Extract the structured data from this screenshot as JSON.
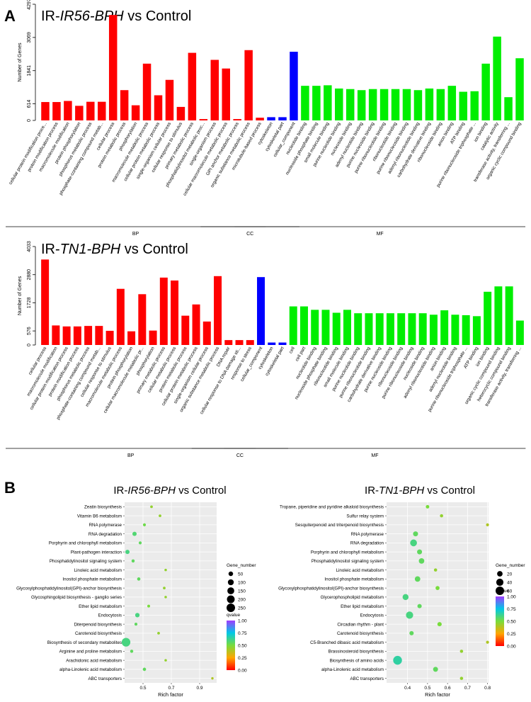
{
  "panelA": {
    "letter": "A",
    "colors": {
      "BP": "#ff0000",
      "CC": "#0000ff",
      "MF": "#00ee00"
    },
    "charts": [
      {
        "title_prefix": "IR-",
        "title_italic": "IR56-BPH",
        "title_suffix": " vs Control",
        "ylabel": "Number of Genes",
        "ymax": 4297,
        "yticks": [
          0,
          614,
          1841,
          3069,
          4297
        ],
        "groups": [
          {
            "name": "BP",
            "items": [
              {
                "label": "cellular protein modification proce...",
                "value": 680
              },
              {
                "label": "protein modification process",
                "value": 680
              },
              {
                "label": "macromolecule modification",
                "value": 720
              },
              {
                "label": "protein phosphorylation",
                "value": 540
              },
              {
                "label": "phosphorus metabolic process",
                "value": 690
              },
              {
                "label": "phosphate-containing compound metab...",
                "value": 690
              },
              {
                "label": "cellular process",
                "value": 3900
              },
              {
                "label": "protein metabolic process",
                "value": 1120
              },
              {
                "label": "phosphorylation",
                "value": 560
              },
              {
                "label": "macromolecule metabolic process",
                "value": 2100
              },
              {
                "label": "cellular protein metabolic process",
                "value": 930
              },
              {
                "label": "single-organism cellular process",
                "value": 1500
              },
              {
                "label": "cellular response to stimulus",
                "value": 500
              },
              {
                "label": "primary metabolic process",
                "value": 2500
              },
              {
                "label": "phosphatidylinositol metabolic proc...",
                "value": 50
              },
              {
                "label": "single-organism process",
                "value": 2240
              },
              {
                "label": "cellular macromolecule metabolic process",
                "value": 1920
              },
              {
                "label": "GPI anchor metabolic process",
                "value": 50
              },
              {
                "label": "organic substance metabolic process",
                "value": 2600
              },
              {
                "label": "microtubule-based process",
                "value": 100
              }
            ]
          },
          {
            "name": "CC",
            "items": [
              {
                "label": "cytoskeleton",
                "value": 120
              },
              {
                "label": "cytoskeletal part",
                "value": 120
              },
              {
                "label": "cellular_component",
                "value": 2540
              }
            ]
          },
          {
            "name": "MF",
            "items": [
              {
                "label": "nucleotide binding",
                "value": 1280
              },
              {
                "label": "nucleoside phosphate binding",
                "value": 1280
              },
              {
                "label": "small molecule binding",
                "value": 1300
              },
              {
                "label": "purine nucleotide binding",
                "value": 1180
              },
              {
                "label": "nucleoside binding",
                "value": 1160
              },
              {
                "label": "adenyl nucleotide binding",
                "value": 1120
              },
              {
                "label": "purine nucleoside binding",
                "value": 1160
              },
              {
                "label": "purine ribonucleotide binding",
                "value": 1160
              },
              {
                "label": "ribonucleotide binding",
                "value": 1160
              },
              {
                "label": "purine ribonucleoside binding",
                "value": 1160
              },
              {
                "label": "adenyl ribonucleotide binding",
                "value": 1120
              },
              {
                "label": "carbohydrate derivative binding",
                "value": 1180
              },
              {
                "label": "ribonucleoside binding",
                "value": 1160
              },
              {
                "label": "anion binding",
                "value": 1280
              },
              {
                "label": "ATP binding",
                "value": 1060
              },
              {
                "label": "purine ribonucleoside triphosphate ...",
                "value": 1080
              },
              {
                "label": "ion binding",
                "value": 2100
              },
              {
                "label": "catalytic activity",
                "value": 3100
              },
              {
                "label": "transferase activity, transferring ...",
                "value": 860
              },
              {
                "label": "organic cyclic compound binding",
                "value": 2300
              }
            ]
          }
        ]
      },
      {
        "title_prefix": "IR-",
        "title_italic": "TN1-BPH",
        "title_suffix": " vs Control",
        "ylabel": "Number of Genes",
        "ymax": 4033,
        "yticks": [
          0,
          576,
          1728,
          2880,
          4033
        ],
        "groups": [
          {
            "name": "BP",
            "items": [
              {
                "label": "cellular process",
                "value": 3500
              },
              {
                "label": "macromolecule modification",
                "value": 800
              },
              {
                "label": "cellular protein modification process",
                "value": 760
              },
              {
                "label": "protein modification process",
                "value": 760
              },
              {
                "label": "phosphorus metabolic process",
                "value": 780
              },
              {
                "label": "phosphate-containing compound metab...",
                "value": 780
              },
              {
                "label": "cellular response to stimulus",
                "value": 580
              },
              {
                "label": "macromolecule metabolic process",
                "value": 2300
              },
              {
                "label": "protein phosphorylation",
                "value": 560
              },
              {
                "label": "cellular macromolecule metabolic pr...",
                "value": 2080
              },
              {
                "label": "phosphorylation",
                "value": 590
              },
              {
                "label": "primary metabolic process",
                "value": 2760
              },
              {
                "label": "cellular metabolic process",
                "value": 2640
              },
              {
                "label": "protein metabolic process",
                "value": 1200
              },
              {
                "label": "cellular protein metabolic process",
                "value": 1660
              },
              {
                "label": "single-organism cellular process",
                "value": 960
              },
              {
                "label": "organic substance metabolic process",
                "value": 2820
              },
              {
                "label": "DNA repair",
                "value": 200
              },
              {
                "label": "cellular response to DNA damage sti...",
                "value": 200
              },
              {
                "label": "response to stress",
                "value": 200
              }
            ]
          },
          {
            "name": "CC",
            "items": [
              {
                "label": "cellular_component",
                "value": 2780
              },
              {
                "label": "cytoskeleton",
                "value": 100
              },
              {
                "label": "cytoskeletal part",
                "value": 100
              }
            ]
          },
          {
            "name": "MF",
            "items": [
              {
                "label": "cell",
                "value": 1580
              },
              {
                "label": "cell part",
                "value": 1580
              },
              {
                "label": "nucleotide binding",
                "value": 1440
              },
              {
                "label": "nucleoside phosphate binding",
                "value": 1440
              },
              {
                "label": "ribonucleotide binding",
                "value": 1320
              },
              {
                "label": "small molecule binding",
                "value": 1440
              },
              {
                "label": "purine nucleotide binding",
                "value": 1300
              },
              {
                "label": "purine ribonucleotide binding",
                "value": 1300
              },
              {
                "label": "carbohydrate derivative binding",
                "value": 1300
              },
              {
                "label": "purine nucleoside binding",
                "value": 1300
              },
              {
                "label": "ribonucleoside binding",
                "value": 1300
              },
              {
                "label": "purine ribonucleoside binding",
                "value": 1300
              },
              {
                "label": "nucleoside binding",
                "value": 1300
              },
              {
                "label": "adenyl ribonucleotide binding",
                "value": 1240
              },
              {
                "label": "anion binding",
                "value": 1420
              },
              {
                "label": "adenyl nucleotide binding",
                "value": 1240
              },
              {
                "label": "purine ribonucleoside triphosphate ...",
                "value": 1220
              },
              {
                "label": "ATP binding",
                "value": 1180
              },
              {
                "label": "ion binding",
                "value": 2180
              },
              {
                "label": "organic cyclic compound binding",
                "value": 2400
              },
              {
                "label": "heterocyclic compound binding",
                "value": 2400
              },
              {
                "label": "transferase activity, transferring ...",
                "value": 1000
              }
            ]
          }
        ]
      }
    ]
  },
  "panelB": {
    "letter": "B",
    "size_legend_title": "Gene_number",
    "color_legend_title": "qvalue",
    "xlabel": "Rich factor",
    "colorbar_ticks": [
      "1.00",
      "0.75",
      "0.50",
      "0.25",
      "0.00"
    ],
    "charts": [
      {
        "title_prefix": "IR-",
        "title_italic": "IR56-BPH",
        "title_suffix": " vs Control",
        "xlim": [
          0.37,
          1.02
        ],
        "xticks": [
          0.5,
          0.7,
          0.9
        ],
        "xtick_labels": [
          "0.5",
          "0.7",
          "0.9"
        ],
        "size_legend": [
          50,
          100,
          150,
          200,
          250
        ],
        "points": [
          {
            "term": "Zeatin biosynthesis",
            "rich": 0.56,
            "genes": 8,
            "q": 0.45
          },
          {
            "term": "Vitamin B6 metabolism",
            "rich": 0.62,
            "genes": 8,
            "q": 0.45
          },
          {
            "term": "RNA polymerase",
            "rich": 0.51,
            "genes": 12,
            "q": 0.52
          },
          {
            "term": "RNA degradation",
            "rich": 0.44,
            "genes": 40,
            "q": 0.58
          },
          {
            "term": "Porphyrin and chlorophyll metabolism",
            "rich": 0.48,
            "genes": 12,
            "q": 0.55
          },
          {
            "term": "Plant-pathogen interaction",
            "rich": 0.39,
            "genes": 40,
            "q": 0.6
          },
          {
            "term": "Phosphatidylinositol signaling system",
            "rich": 0.43,
            "genes": 15,
            "q": 0.55
          },
          {
            "term": "Linoleic acid metabolism",
            "rich": 0.66,
            "genes": 6,
            "q": 0.45
          },
          {
            "term": "Inositol phosphate metabolism",
            "rich": 0.47,
            "genes": 18,
            "q": 0.55
          },
          {
            "term": "Glycosylphosphatidylinositol(GPI)-anchor biosynthesis",
            "rich": 0.65,
            "genes": 8,
            "q": 0.45
          },
          {
            "term": "Glycosphingolipid biosynthesis - ganglio series",
            "rich": 0.66,
            "genes": 6,
            "q": 0.45
          },
          {
            "term": "Ether lipid metabolism",
            "rich": 0.54,
            "genes": 10,
            "q": 0.5
          },
          {
            "term": "Endocytosis",
            "rich": 0.46,
            "genes": 45,
            "q": 0.6
          },
          {
            "term": "Diterpenoid biosynthesis",
            "rich": 0.45,
            "genes": 12,
            "q": 0.55
          },
          {
            "term": "Carotenoid biosynthesis",
            "rich": 0.61,
            "genes": 8,
            "q": 0.45
          },
          {
            "term": "Biosynthesis of secondary metabolites",
            "rich": 0.38,
            "genes": 260,
            "q": 0.6
          },
          {
            "term": "Arginine and proline metabolism",
            "rich": 0.42,
            "genes": 15,
            "q": 0.55
          },
          {
            "term": "Arachidonic acid metabolism",
            "rich": 0.66,
            "genes": 6,
            "q": 0.45
          },
          {
            "term": "alpha-Linolenic acid metabolism",
            "rich": 0.51,
            "genes": 18,
            "q": 0.55
          },
          {
            "term": "ABC transporters",
            "rich": 0.99,
            "genes": 5,
            "q": 0.4
          }
        ]
      },
      {
        "title_prefix": "IR-",
        "title_italic": "TN1-BPH",
        "title_suffix": " vs Control",
        "xlim": [
          0.295,
          0.805
        ],
        "xticks": [
          0.4,
          0.5,
          0.6,
          0.7,
          0.8
        ],
        "xtick_labels": [
          "0.4",
          "0.5",
          "0.6",
          "0.7",
          "0.8"
        ],
        "size_legend": [
          20,
          40,
          60
        ],
        "points": [
          {
            "term": "Tropane, piperidine and pyridine alkaloid biosynthesis",
            "rich": 0.5,
            "genes": 5,
            "q": 0.5
          },
          {
            "term": "Sulfur relay system",
            "rich": 0.57,
            "genes": 4,
            "q": 0.45
          },
          {
            "term": "Sesquiterpenoid and triterpenoid biosynthesis",
            "rich": 0.8,
            "genes": 3,
            "q": 0.4
          },
          {
            "term": "RNA polymerase",
            "rich": 0.44,
            "genes": 15,
            "q": 0.55
          },
          {
            "term": "RNA degradation",
            "rich": 0.43,
            "genes": 35,
            "q": 0.6
          },
          {
            "term": "Porphyrin and chlorophyll metabolism",
            "rich": 0.46,
            "genes": 15,
            "q": 0.55
          },
          {
            "term": "Phosphatidylinositol signaling system",
            "rich": 0.47,
            "genes": 20,
            "q": 0.55
          },
          {
            "term": "Linoleic acid metabolism",
            "rich": 0.54,
            "genes": 4,
            "q": 0.45
          },
          {
            "term": "Inositol phosphate metabolism",
            "rich": 0.45,
            "genes": 20,
            "q": 0.55
          },
          {
            "term": "Glycosylphosphatidylinositol(GPI)-anchor biosynthesis",
            "rich": 0.55,
            "genes": 8,
            "q": 0.5
          },
          {
            "term": "Glycerophospholipid metabolism",
            "rich": 0.39,
            "genes": 25,
            "q": 0.6
          },
          {
            "term": "Ether lipid metabolism",
            "rich": 0.46,
            "genes": 10,
            "q": 0.55
          },
          {
            "term": "Endocytosis",
            "rich": 0.41,
            "genes": 40,
            "q": 0.6
          },
          {
            "term": "Circadian rhythm - plant",
            "rich": 0.56,
            "genes": 10,
            "q": 0.5
          },
          {
            "term": "Carotenoid biosynthesis",
            "rich": 0.42,
            "genes": 10,
            "q": 0.55
          },
          {
            "term": "C5-Branched dibasic acid metabolism",
            "rich": 0.8,
            "genes": 3,
            "q": 0.4
          },
          {
            "term": "Brassinosteroid biosynthesis",
            "rich": 0.67,
            "genes": 4,
            "q": 0.45
          },
          {
            "term": "Biosynthesis of amino acids",
            "rich": 0.35,
            "genes": 65,
            "q": 0.65
          },
          {
            "term": "alpha-Linolenic acid metabolism",
            "rich": 0.54,
            "genes": 15,
            "q": 0.55
          },
          {
            "term": "ABC transporters",
            "rich": 0.67,
            "genes": 4,
            "q": 0.45
          }
        ]
      }
    ]
  }
}
